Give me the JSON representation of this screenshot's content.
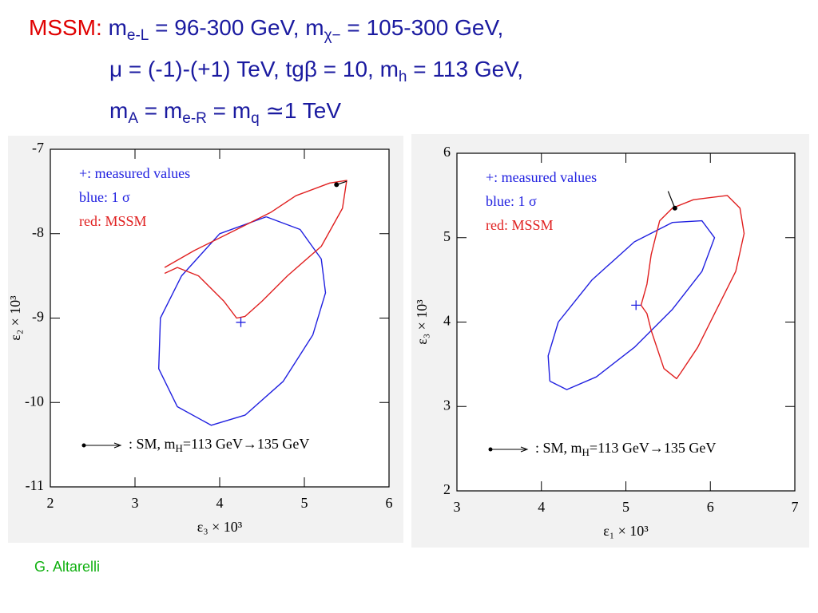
{
  "header": {
    "label": "MSSM:",
    "lines": [
      [
        {
          "t": "m"
        },
        {
          "sub": "e-L"
        },
        {
          "t": " = 96-300 GeV, m"
        },
        {
          "sub": "χ−"
        },
        {
          "t": " = 105-300 GeV,"
        }
      ],
      [
        {
          "t": "μ = (-1)-(+1) TeV, tgβ = 10, m"
        },
        {
          "sub": "h"
        },
        {
          "t": " = 113 GeV,"
        }
      ],
      [
        {
          "t": "m"
        },
        {
          "sub": "A"
        },
        {
          "t": " = m"
        },
        {
          "sub": "e-R"
        },
        {
          "t": " = m"
        },
        {
          "sub": "q"
        },
        {
          "t": " ≃1 TeV"
        }
      ]
    ]
  },
  "chart_data": [
    {
      "type": "line",
      "xlabel": "ε₃ × 10³",
      "ylabel": "ε₂ × 10³",
      "xlim": [
        2,
        6
      ],
      "xticks": [
        2,
        3,
        4,
        5,
        6
      ],
      "ylim": [
        -11,
        -7
      ],
      "yticks": [
        -11,
        -10,
        -9,
        -8,
        -7
      ],
      "annotations": [
        "+: measured values",
        "blue: 1 σ",
        "red: MSSM"
      ],
      "sm_note": [
        ": SM, m",
        "H",
        "=113 GeV→135 GeV"
      ],
      "series": [
        {
          "color": "#2020e0",
          "marker": "none",
          "x": [
            4.55,
            4.95,
            5.2,
            5.25,
            5.1,
            4.75,
            4.3,
            3.9,
            3.5,
            3.28,
            3.3,
            3.55,
            4.0,
            4.55
          ],
          "values": [
            -7.8,
            -7.95,
            -8.3,
            -8.7,
            -9.2,
            -9.75,
            -10.15,
            -10.27,
            -10.05,
            -9.6,
            -9.0,
            -8.5,
            -8.0,
            -7.8
          ]
        },
        {
          "color": "#e02020",
          "marker": "none",
          "x": [
            3.35,
            3.7,
            4.2,
            4.6,
            4.9,
            5.3,
            5.5,
            5.45,
            5.2,
            4.8,
            4.5,
            4.3,
            4.2,
            4.05,
            3.75,
            3.5,
            3.35
          ],
          "values": [
            -8.4,
            -8.2,
            -7.95,
            -7.75,
            -7.55,
            -7.4,
            -7.37,
            -7.7,
            -8.15,
            -8.5,
            -8.8,
            -8.98,
            -9.0,
            -8.8,
            -8.5,
            -8.4,
            -8.47
          ]
        },
        {
          "color": "#2020e0",
          "marker": "plus",
          "x": [
            4.25
          ],
          "values": [
            -9.05
          ]
        },
        {
          "color": "#000000",
          "marker": "arrow",
          "x": [
            5.38,
            5.5
          ],
          "values": [
            -7.42,
            -7.38
          ]
        }
      ]
    },
    {
      "type": "line",
      "xlabel": "ε₁ × 10³",
      "ylabel": "ε₃ × 10³",
      "xlim": [
        3,
        7
      ],
      "xticks": [
        3,
        4,
        5,
        6,
        7
      ],
      "ylim": [
        2,
        6
      ],
      "yticks": [
        2,
        3,
        4,
        5,
        6
      ],
      "annotations": [
        "+: measured values",
        "blue: 1 σ",
        "red: MSSM"
      ],
      "sm_note": [
        ": SM, m",
        "H",
        "=113 GeV→135 GeV"
      ],
      "series": [
        {
          "color": "#2020e0",
          "marker": "none",
          "x": [
            4.1,
            4.3,
            4.65,
            5.1,
            5.55,
            5.9,
            6.05,
            5.9,
            5.55,
            5.1,
            4.6,
            4.2,
            4.08,
            4.1
          ],
          "values": [
            3.3,
            3.2,
            3.35,
            3.7,
            4.15,
            4.6,
            5.0,
            5.2,
            5.18,
            4.95,
            4.5,
            4.0,
            3.6,
            3.3
          ]
        },
        {
          "color": "#e02020",
          "marker": "none",
          "x": [
            5.55,
            5.8,
            6.2,
            6.35,
            6.4,
            6.3,
            6.05,
            5.85,
            5.65,
            5.6,
            5.45,
            5.3,
            5.25,
            5.18,
            5.25,
            5.3,
            5.4,
            5.55
          ],
          "values": [
            5.35,
            5.45,
            5.5,
            5.35,
            5.05,
            4.6,
            4.1,
            3.7,
            3.4,
            3.33,
            3.45,
            3.9,
            4.1,
            4.2,
            4.45,
            4.8,
            5.2,
            5.35
          ]
        },
        {
          "color": "#2020e0",
          "marker": "plus",
          "x": [
            5.12
          ],
          "values": [
            4.2
          ]
        },
        {
          "color": "#000000",
          "marker": "arrow",
          "x": [
            5.58,
            5.5
          ],
          "values": [
            5.35,
            5.55
          ]
        }
      ]
    }
  ],
  "footer": "G. Altarelli"
}
